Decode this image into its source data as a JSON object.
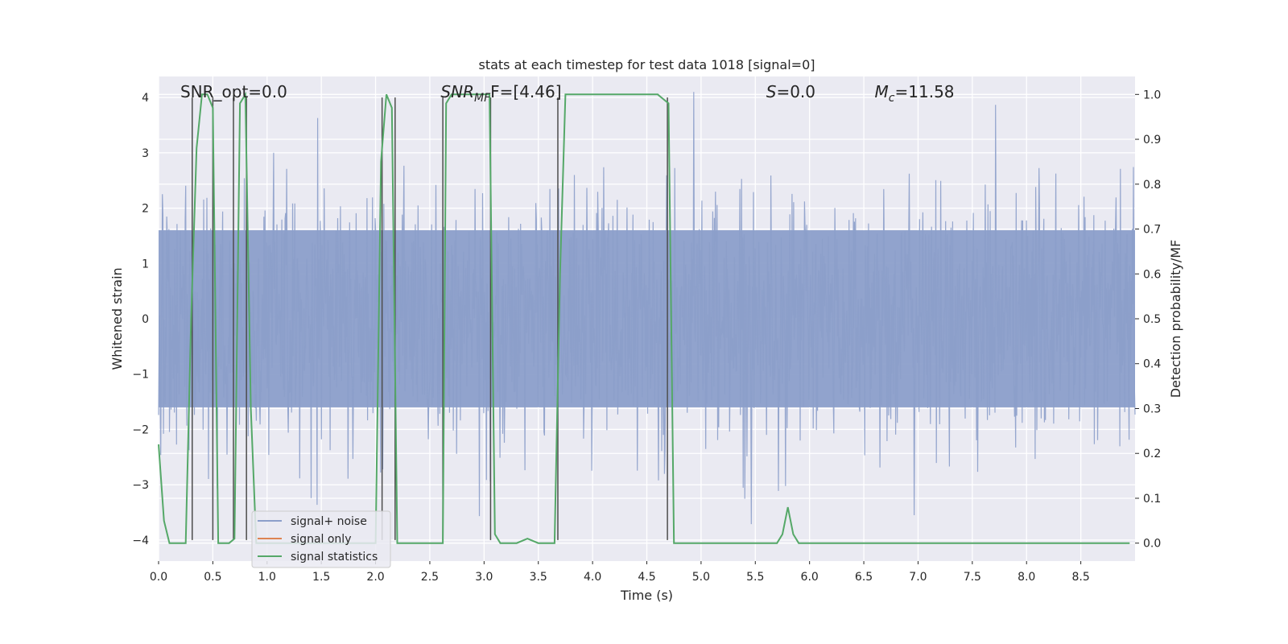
{
  "chart_data": {
    "type": "line",
    "title": "stats at each timestep for test data 1018 [signal=0]",
    "xlabel": "Time (s)",
    "ylabel_left": "Whitened strain",
    "ylabel_right": "Detection probability/MF",
    "xlim": [
      0.0,
      9.0
    ],
    "ylim_left": [
      -4.38,
      4.38
    ],
    "ylim_right": [
      -0.04,
      1.04
    ],
    "xticks": [
      0.0,
      0.5,
      1.0,
      1.5,
      2.0,
      2.5,
      3.0,
      3.5,
      4.0,
      4.5,
      5.0,
      5.5,
      6.0,
      6.5,
      7.0,
      7.5,
      8.0,
      8.5
    ],
    "xtick_labels": [
      "0.0",
      "0.5",
      "1.0",
      "1.5",
      "2.0",
      "2.5",
      "3.0",
      "3.5",
      "4.0",
      "4.5",
      "5.0",
      "5.5",
      "6.0",
      "6.5",
      "7.0",
      "7.5",
      "8.0",
      "8.5"
    ],
    "yticks_left": [
      -4,
      -3,
      -2,
      -1,
      0,
      1,
      2,
      3,
      4
    ],
    "ytick_labels_left": [
      "−4",
      "−3",
      "−2",
      "−1",
      "0",
      "1",
      "2",
      "3",
      "4"
    ],
    "yticks_right": [
      0.0,
      0.1,
      0.2,
      0.3,
      0.4,
      0.5,
      0.6,
      0.7,
      0.8,
      0.9,
      1.0
    ],
    "ytick_labels_right": [
      "0.0",
      "0.1",
      "0.2",
      "0.3",
      "0.4",
      "0.5",
      "0.6",
      "0.7",
      "0.8",
      "0.9",
      "1.0"
    ],
    "grid": true,
    "legend_position": "lower-left",
    "annotations": [
      {
        "id": "snr-opt",
        "text": "SNR_opt=0.0",
        "x": 0.2,
        "y": 4.1
      },
      {
        "id": "snr-mf",
        "text": "SNR_MF=[4.46]",
        "italic_part": "SNR",
        "sub": "MF",
        "rest": "F=[4.46]",
        "x": 2.6,
        "y": 4.1
      },
      {
        "id": "s-value",
        "text": "S=0.0",
        "italic_part": "S",
        "rest": "=0.0",
        "x": 5.6,
        "y": 4.1
      },
      {
        "id": "mc-value",
        "text": "Mc=11.58",
        "italic_part": "M",
        "sub": "c",
        "rest": "=11.58",
        "x": 6.6,
        "y": 4.1
      }
    ],
    "vertical_markers": [
      0.31,
      0.5,
      0.69,
      0.81,
      2.06,
      2.18,
      2.62,
      3.06,
      3.68,
      4.69
    ],
    "series": [
      {
        "name": "signal+ noise",
        "axis": "left",
        "color": "#8c9fca",
        "envelope_core": 1.6,
        "noise_seed": 1018,
        "samples": 1800
      },
      {
        "name": "signal only",
        "axis": "left",
        "color": "#dd8452",
        "values": []
      },
      {
        "name": "signal statistics",
        "axis": "right",
        "color": "#55a868",
        "x": [
          0.0,
          0.05,
          0.1,
          0.2,
          0.25,
          0.3,
          0.35,
          0.4,
          0.45,
          0.5,
          0.55,
          0.6,
          0.65,
          0.7,
          0.75,
          0.8,
          0.85,
          0.9,
          0.95,
          1.0,
          1.5,
          1.9,
          2.0,
          2.05,
          2.1,
          2.15,
          2.2,
          2.25,
          2.6,
          2.62,
          2.65,
          2.7,
          3.05,
          3.1,
          3.15,
          3.2,
          3.3,
          3.4,
          3.5,
          3.65,
          3.7,
          3.75,
          4.0,
          4.5,
          4.6,
          4.65,
          4.7,
          4.75,
          5.0,
          5.7,
          5.75,
          5.8,
          5.85,
          5.9,
          6.0,
          7.0,
          8.0,
          8.95
        ],
        "values": [
          0.22,
          0.05,
          0.0,
          0.0,
          0.0,
          0.5,
          0.88,
          1.0,
          1.0,
          0.97,
          0.0,
          0.0,
          0.0,
          0.01,
          0.98,
          1.0,
          0.3,
          0.0,
          0.0,
          0.0,
          0.0,
          0.0,
          0.0,
          0.85,
          1.0,
          0.97,
          0.0,
          0.0,
          0.0,
          0.0,
          0.98,
          1.0,
          1.0,
          0.02,
          0.0,
          0.0,
          0.0,
          0.01,
          0.0,
          0.0,
          0.6,
          1.0,
          1.0,
          1.0,
          1.0,
          0.99,
          0.98,
          0.0,
          0.0,
          0.0,
          0.02,
          0.08,
          0.02,
          0.0,
          0.0,
          0.0,
          0.0,
          0.0
        ]
      }
    ]
  },
  "legend": {
    "items": [
      "signal+ noise",
      "signal only",
      "signal statistics"
    ]
  }
}
